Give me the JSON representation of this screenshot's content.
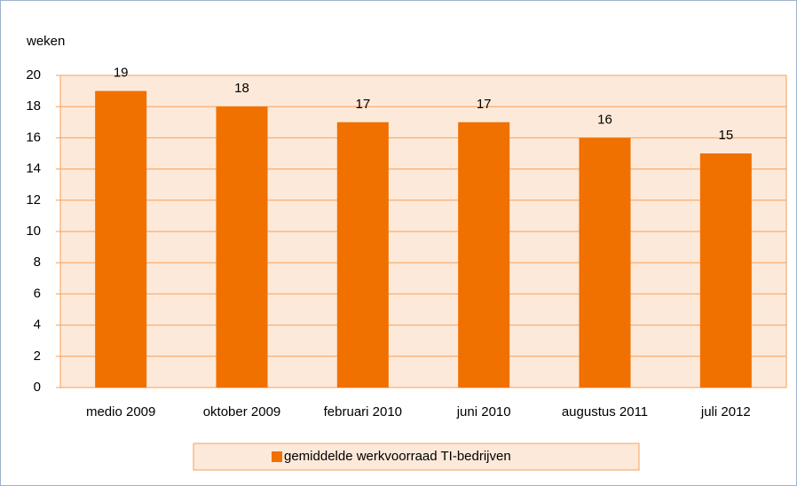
{
  "chart_data": {
    "type": "bar",
    "y_label": "weken",
    "categories": [
      "medio 2009",
      "oktober 2009",
      "februari 2010",
      "juni 2010",
      "augustus 2011",
      "juli 2012"
    ],
    "series": [
      {
        "name": "gemiddelde werkvoorraad TI-bedrijven",
        "color": "#f07000",
        "values": [
          19,
          18,
          17,
          17,
          16,
          15
        ]
      }
    ],
    "ylim": [
      0,
      20
    ],
    "yticks": [
      0,
      2,
      4,
      6,
      8,
      10,
      12,
      14,
      16,
      18,
      20
    ],
    "grid": true,
    "legend": "bottom"
  }
}
